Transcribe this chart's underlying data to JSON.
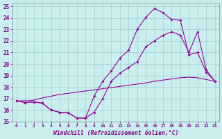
{
  "xlabel": "Windchill (Refroidissement éolien,°C)",
  "background_color": "#c8eeee",
  "grid_color": "#a0cccc",
  "line_color": "#990099",
  "xlim": [
    -0.5,
    23.5
  ],
  "ylim": [
    15,
    25.3
  ],
  "yticks": [
    15,
    16,
    17,
    18,
    19,
    20,
    21,
    22,
    23,
    24,
    25
  ],
  "xticks": [
    0,
    1,
    2,
    3,
    4,
    5,
    6,
    7,
    8,
    9,
    10,
    11,
    12,
    13,
    14,
    15,
    16,
    17,
    18,
    19,
    20,
    21,
    22,
    23
  ],
  "curve_upper_x": [
    0,
    1,
    2,
    3,
    4,
    5,
    6,
    7,
    8,
    9,
    10,
    11,
    12,
    13,
    14,
    15,
    16,
    17,
    18,
    19,
    20,
    21,
    22,
    23
  ],
  "curve_upper_y": [
    16.8,
    16.65,
    16.7,
    16.6,
    16.0,
    15.8,
    15.75,
    15.3,
    15.3,
    17.2,
    18.5,
    19.4,
    20.5,
    21.2,
    23.0,
    24.05,
    24.8,
    24.45,
    23.85,
    23.8,
    20.8,
    21.0,
    19.3,
    18.5
  ],
  "curve_mid_x": [
    0,
    1,
    2,
    3,
    4,
    5,
    6,
    7,
    8,
    9,
    10,
    11,
    12,
    13,
    14,
    15,
    16,
    17,
    18,
    19,
    20,
    21,
    22,
    23
  ],
  "curve_mid_y": [
    16.8,
    16.65,
    16.7,
    16.6,
    16.0,
    15.8,
    15.75,
    15.3,
    15.3,
    15.8,
    17.0,
    18.5,
    19.2,
    19.7,
    20.2,
    21.5,
    22.0,
    22.5,
    22.8,
    22.5,
    21.0,
    22.8,
    19.5,
    18.5
  ],
  "curve_low_x": [
    0,
    1,
    2,
    3,
    4,
    5,
    6,
    7,
    8,
    9,
    10,
    11,
    12,
    13,
    14,
    15,
    16,
    17,
    18,
    19,
    20,
    21,
    22,
    23
  ],
  "curve_low_y": [
    16.8,
    16.8,
    16.85,
    17.05,
    17.2,
    17.35,
    17.45,
    17.55,
    17.65,
    17.75,
    17.85,
    17.95,
    18.05,
    18.15,
    18.25,
    18.35,
    18.5,
    18.6,
    18.7,
    18.8,
    18.85,
    18.8,
    18.65,
    18.5
  ]
}
